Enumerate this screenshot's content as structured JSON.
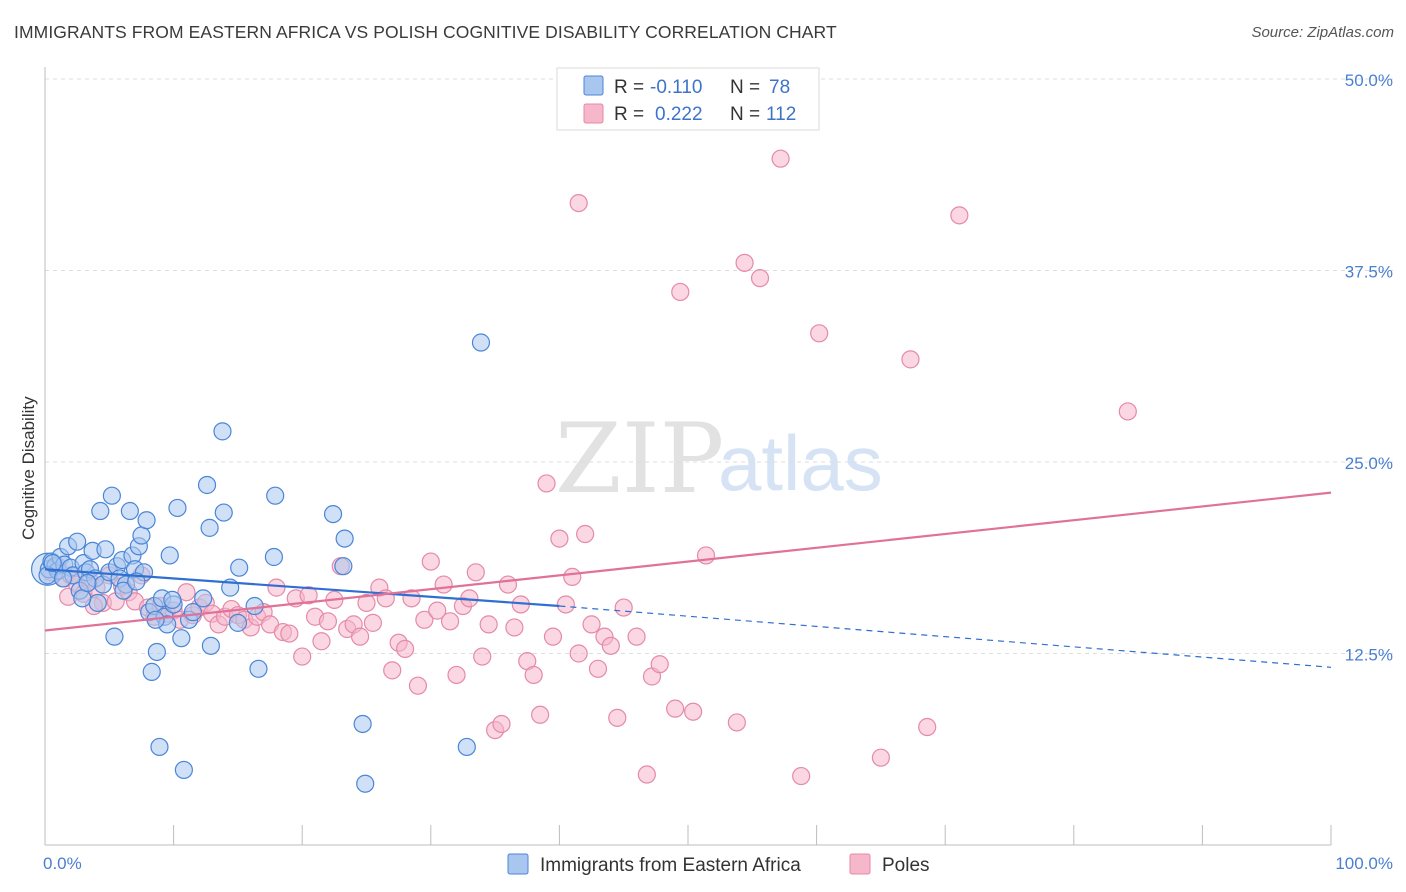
{
  "title": "IMMIGRANTS FROM EASTERN AFRICA VS POLISH COGNITIVE DISABILITY CORRELATION CHART",
  "source": "Source: ZipAtlas.com",
  "watermark": {
    "zip": "ZIP",
    "atlas": "atlas"
  },
  "colors": {
    "blue_fill": "#a9c6ee",
    "blue_stroke": "#4a86d8",
    "blue_line": "#2f6fd0",
    "pink_fill": "#f6b7cb",
    "pink_stroke": "#e58aa8",
    "pink_line": "#e0729a",
    "grid": "#dcdcdc",
    "tick_label": "#4a7fcf"
  },
  "legend": {
    "rows": [
      {
        "r_label": "R = ",
        "r_value": "-0.110",
        "n_label": "N = ",
        "n_value": "78"
      },
      {
        "r_label": "R = ",
        "r_value": "0.222",
        "n_label": "N = ",
        "n_value": "112"
      }
    ]
  },
  "chart_data": {
    "type": "scatter",
    "title": "IMMIGRANTS FROM EASTERN AFRICA VS POLISH COGNITIVE DISABILITY CORRELATION CHART",
    "xlabel": "",
    "ylabel": "Cognitive Disability",
    "xlim": [
      0,
      100
    ],
    "ylim": [
      0,
      50
    ],
    "x_tick_labels": [
      "0.0%",
      "100.0%"
    ],
    "y_ticks": [
      12.5,
      25.0,
      37.5,
      50.0
    ],
    "y_tick_labels": [
      "12.5%",
      "25.0%",
      "37.5%",
      "50.0%"
    ],
    "grid": "horizontal dashed",
    "legend_position": "top-center",
    "series": [
      {
        "name": "Immigrants from Eastern Africa",
        "r": -0.11,
        "n": 78,
        "trend": {
          "x_start": 0,
          "y_start": 18.0,
          "x_solid_end": 40,
          "y_solid_end": 15.6,
          "x_end": 100,
          "y_end": 11.6
        },
        "points": [
          [
            0.3,
            18.0
          ],
          [
            0.5,
            18.5
          ],
          [
            0.8,
            18.2
          ],
          [
            1.0,
            17.9
          ],
          [
            1.2,
            18.8
          ],
          [
            1.5,
            18.3
          ],
          [
            1.8,
            19.5
          ],
          [
            2.0,
            18.1
          ],
          [
            2.2,
            17.6
          ],
          [
            2.5,
            19.8
          ],
          [
            2.7,
            16.6
          ],
          [
            3.0,
            18.4
          ],
          [
            3.2,
            17.8
          ],
          [
            3.5,
            18.0
          ],
          [
            3.7,
            19.2
          ],
          [
            3.9,
            17.4
          ],
          [
            4.1,
            15.8
          ],
          [
            4.3,
            21.8
          ],
          [
            4.5,
            17.0
          ],
          [
            4.7,
            19.3
          ],
          [
            5.0,
            17.8
          ],
          [
            5.2,
            22.8
          ],
          [
            5.4,
            13.6
          ],
          [
            5.6,
            18.2
          ],
          [
            5.8,
            17.4
          ],
          [
            6.0,
            18.6
          ],
          [
            6.3,
            17.0
          ],
          [
            6.6,
            21.8
          ],
          [
            6.8,
            18.9
          ],
          [
            7.0,
            18.0
          ],
          [
            7.3,
            19.5
          ],
          [
            7.5,
            20.2
          ],
          [
            7.7,
            17.8
          ],
          [
            7.9,
            21.2
          ],
          [
            8.1,
            15.2
          ],
          [
            8.3,
            11.3
          ],
          [
            8.5,
            15.6
          ],
          [
            8.7,
            12.6
          ],
          [
            8.9,
            6.4
          ],
          [
            9.1,
            16.1
          ],
          [
            9.3,
            14.9
          ],
          [
            9.5,
            14.4
          ],
          [
            9.7,
            18.9
          ],
          [
            10.0,
            15.7
          ],
          [
            10.3,
            22.0
          ],
          [
            10.6,
            13.5
          ],
          [
            10.8,
            4.9
          ],
          [
            11.2,
            14.7
          ],
          [
            11.5,
            15.2
          ],
          [
            12.3,
            16.1
          ],
          [
            12.6,
            23.5
          ],
          [
            12.8,
            20.7
          ],
          [
            12.9,
            13.0
          ],
          [
            13.8,
            27.0
          ],
          [
            13.9,
            21.7
          ],
          [
            14.4,
            16.8
          ],
          [
            15.1,
            18.1
          ],
          [
            16.6,
            11.5
          ],
          [
            17.8,
            18.8
          ],
          [
            17.9,
            22.8
          ],
          [
            22.4,
            21.6
          ],
          [
            23.2,
            18.2
          ],
          [
            23.3,
            20.0
          ],
          [
            24.7,
            7.9
          ],
          [
            24.9,
            4.0
          ],
          [
            32.8,
            6.4
          ],
          [
            33.9,
            32.8
          ],
          [
            0.2,
            17.6
          ],
          [
            0.6,
            18.4
          ],
          [
            1.4,
            17.4
          ],
          [
            2.9,
            16.1
          ],
          [
            3.3,
            17.1
          ],
          [
            6.1,
            16.6
          ],
          [
            7.1,
            17.2
          ],
          [
            8.6,
            14.7
          ],
          [
            9.9,
            16.0
          ],
          [
            15.0,
            14.5
          ],
          [
            16.3,
            15.6
          ]
        ]
      },
      {
        "name": "Poles",
        "r": 0.222,
        "n": 112,
        "trend": {
          "x_start": 0,
          "y_start": 14.0,
          "x_end": 100,
          "y_end": 23.0
        },
        "points": [
          [
            0.5,
            17.8
          ],
          [
            1.0,
            18.2
          ],
          [
            1.5,
            17.4
          ],
          [
            2.0,
            17.6
          ],
          [
            2.5,
            17.0
          ],
          [
            3.0,
            16.4
          ],
          [
            3.5,
            17.2
          ],
          [
            4.0,
            16.8
          ],
          [
            4.5,
            15.8
          ],
          [
            5.0,
            17.6
          ],
          [
            5.5,
            15.9
          ],
          [
            6.0,
            16.9
          ],
          [
            6.5,
            16.5
          ],
          [
            7.0,
            15.9
          ],
          [
            7.5,
            17.6
          ],
          [
            8.0,
            15.5
          ],
          [
            8.5,
            14.9
          ],
          [
            9.0,
            15.6
          ],
          [
            9.5,
            15.1
          ],
          [
            10.0,
            15.3
          ],
          [
            10.5,
            14.7
          ],
          [
            11.0,
            16.5
          ],
          [
            11.5,
            15.0
          ],
          [
            12.0,
            15.5
          ],
          [
            12.5,
            15.8
          ],
          [
            13.0,
            15.1
          ],
          [
            13.5,
            14.4
          ],
          [
            14.0,
            14.9
          ],
          [
            14.5,
            15.4
          ],
          [
            15.0,
            15.0
          ],
          [
            15.5,
            14.7
          ],
          [
            16.0,
            14.2
          ],
          [
            16.5,
            14.9
          ],
          [
            17.0,
            15.2
          ],
          [
            17.5,
            14.4
          ],
          [
            18.0,
            16.8
          ],
          [
            18.5,
            13.9
          ],
          [
            19.0,
            13.8
          ],
          [
            19.5,
            16.1
          ],
          [
            20.0,
            12.3
          ],
          [
            20.5,
            16.3
          ],
          [
            21.0,
            14.9
          ],
          [
            21.5,
            13.3
          ],
          [
            22.0,
            14.6
          ],
          [
            22.5,
            16.0
          ],
          [
            23.0,
            18.2
          ],
          [
            23.5,
            14.1
          ],
          [
            24.0,
            14.4
          ],
          [
            24.5,
            13.6
          ],
          [
            25.0,
            15.8
          ],
          [
            25.5,
            14.5
          ],
          [
            26.0,
            16.8
          ],
          [
            26.5,
            16.1
          ],
          [
            27.0,
            11.4
          ],
          [
            27.5,
            13.2
          ],
          [
            28.0,
            12.8
          ],
          [
            28.5,
            16.1
          ],
          [
            29.0,
            10.4
          ],
          [
            29.5,
            14.7
          ],
          [
            30.0,
            18.5
          ],
          [
            30.5,
            15.3
          ],
          [
            31.0,
            17.0
          ],
          [
            31.5,
            14.6
          ],
          [
            32.0,
            11.1
          ],
          [
            32.5,
            15.6
          ],
          [
            33.0,
            16.1
          ],
          [
            33.5,
            17.8
          ],
          [
            34.0,
            12.3
          ],
          [
            34.5,
            14.4
          ],
          [
            35.0,
            7.5
          ],
          [
            35.5,
            7.9
          ],
          [
            36.0,
            17.0
          ],
          [
            36.5,
            14.2
          ],
          [
            37.0,
            15.7
          ],
          [
            37.5,
            12.0
          ],
          [
            38.0,
            11.1
          ],
          [
            38.5,
            8.5
          ],
          [
            39.0,
            23.6
          ],
          [
            39.5,
            13.6
          ],
          [
            40.0,
            20.0
          ],
          [
            40.5,
            15.7
          ],
          [
            41.0,
            17.5
          ],
          [
            41.5,
            12.5
          ],
          [
            42.0,
            20.3
          ],
          [
            42.5,
            14.4
          ],
          [
            43.0,
            11.5
          ],
          [
            43.5,
            13.6
          ],
          [
            44.0,
            13.0
          ],
          [
            44.5,
            8.3
          ],
          [
            45.0,
            15.5
          ],
          [
            46.0,
            13.6
          ],
          [
            46.8,
            4.6
          ],
          [
            47.2,
            11.0
          ],
          [
            47.8,
            11.8
          ],
          [
            49.0,
            8.9
          ],
          [
            49.4,
            36.1
          ],
          [
            50.4,
            8.7
          ],
          [
            51.4,
            18.9
          ],
          [
            53.8,
            8.0
          ],
          [
            54.4,
            38.0
          ],
          [
            55.6,
            37.0
          ],
          [
            57.2,
            44.8
          ],
          [
            58.8,
            4.5
          ],
          [
            60.2,
            33.4
          ],
          [
            65.0,
            5.7
          ],
          [
            67.3,
            31.7
          ],
          [
            68.6,
            7.7
          ],
          [
            71.1,
            41.1
          ],
          [
            84.2,
            28.3
          ],
          [
            41.5,
            41.9
          ],
          [
            1.8,
            16.2
          ],
          [
            3.8,
            15.6
          ]
        ]
      }
    ]
  },
  "bottom_legend": [
    {
      "label": "Immigrants from Eastern Africa"
    },
    {
      "label": "Poles"
    }
  ]
}
